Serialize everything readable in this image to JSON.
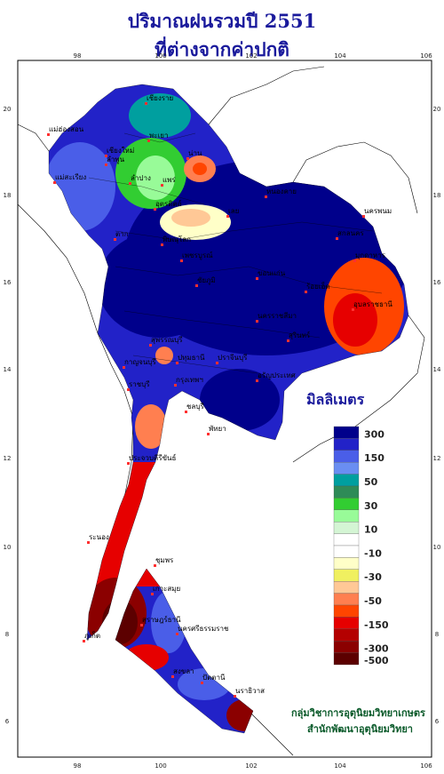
{
  "title_line1": "ปริมาณฝนรวมปี  2551",
  "title_line2": "ที่ต่างจากค่าปกติ",
  "unit_label": "มิลลิเมตร",
  "legend": {
    "colors": [
      "#00008b",
      "#2222c8",
      "#4a5ee8",
      "#6a8ef2",
      "#009f9f",
      "#2e8b57",
      "#32cd32",
      "#98fb98",
      "#d4f5d4",
      "#ffffff",
      "#ffffff",
      "#ffffc8",
      "#f0f060",
      "#ffc896",
      "#ff7f50",
      "#ff4500",
      "#e60000",
      "#b40000",
      "#8b0000",
      "#5c0000"
    ],
    "labels": [
      "300",
      "150",
      "50",
      "30",
      "10",
      "-10",
      "-30",
      "-50",
      "-150",
      "-300",
      "-500"
    ]
  },
  "lon_ticks": [
    "98",
    "100",
    "102",
    "104",
    "106"
  ],
  "lat_ticks": [
    "20",
    "18",
    "16",
    "14",
    "12",
    "10",
    "8",
    "6"
  ],
  "cities": [
    "เชียงราย",
    "แม่ฮ่องสอน",
    "พะเยา",
    "เชียงใหม่",
    "ลำพูน",
    "น่าน",
    "แพร่",
    "ลำปาง",
    "แม่สะเรียง",
    "อุตรดิตถ์",
    "หนองคาย",
    "นครพนม",
    "เลย",
    "ตาก",
    "พิษณุโลก",
    "สกลนคร",
    "มุกดาหาร",
    "เพชรบูรณ์",
    "ชัยภูมิ",
    "ขอนแก่น",
    "ร้อยเอ็ด",
    "อุบลราชธานี",
    "นครราชสีมา",
    "สุรินทร์",
    "สุพรรณบุรี",
    "กาญจนบุรี",
    "ปทุมธานี",
    "กรุงเทพฯ",
    "ปราจีนบุรี",
    "อรัญประเทศ",
    "ราชบุรี",
    "ชลบุรี",
    "พัทยา",
    "ประจวบคีรีขันธ์",
    "ระนอง",
    "ชุมพร",
    "เกาะสมุย",
    "สุราษฎร์ธานี",
    "ภูเก็ต",
    "นครศรีธรรมราช",
    "สงขลา",
    "ปัตตานี",
    "นราธิวาส"
  ],
  "credit_line1": "กลุ่มวิชาการอุตุนิยมวิทยาเกษตร",
  "credit_line2": "สำนักพัฒนาอุตุนิยมวิทยา"
}
